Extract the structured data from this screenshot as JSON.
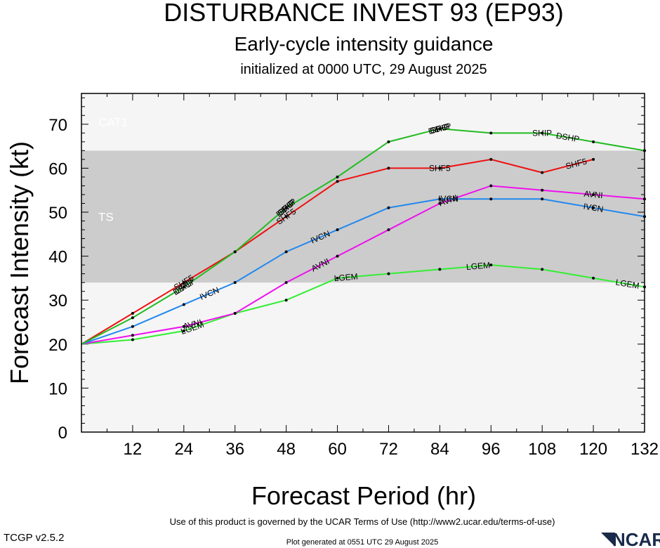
{
  "chart_data": {
    "type": "line",
    "title": "DISTURBANCE INVEST 93 (EP93)",
    "subtitle": "Early-cycle intensity guidance",
    "initialized": "initialized at 0000 UTC, 29 August 2025",
    "xlabel": "Forecast Period (hr)",
    "ylabel": "Forecast Intensity (kt)",
    "xlim": [
      0,
      132
    ],
    "ylim": [
      0,
      77
    ],
    "x_ticks": [
      12,
      24,
      36,
      48,
      60,
      72,
      84,
      96,
      108,
      120,
      132
    ],
    "y_ticks": [
      0,
      10,
      20,
      30,
      40,
      50,
      60,
      70
    ],
    "bands": [
      {
        "label": "TS",
        "from": 34,
        "to": 64,
        "color": "#cccccc"
      },
      {
        "label": "CAT1",
        "from": 64,
        "to": 83,
        "color": "#f5f5f5"
      }
    ],
    "series": [
      {
        "name": "DSHP",
        "color": "#22bb22",
        "x": [
          0,
          12,
          24,
          36,
          48,
          60,
          72,
          84,
          96,
          108,
          120,
          132
        ],
        "y": [
          20,
          26,
          33,
          41,
          51,
          58,
          66,
          69,
          68,
          68,
          66,
          64
        ],
        "labels": [
          {
            "text": "DSHP",
            "at": 24
          },
          {
            "text": "DSHP",
            "at": 48
          },
          {
            "text": "DSHP",
            "at": 84
          },
          {
            "text": "DSHP",
            "at": 114
          }
        ]
      },
      {
        "name": "OFCI",
        "color": "#22bb22",
        "labels": [
          {
            "text": "OFCI",
            "at": 24
          },
          {
            "text": "OFCI",
            "at": 48
          },
          {
            "text": "OFCI",
            "at": 84
          }
        ]
      },
      {
        "name": "SHIP",
        "color": "#22bb22",
        "labels": [
          {
            "text": "SHIP",
            "at": 48
          },
          {
            "text": "SHIP",
            "at": 84
          },
          {
            "text": "SHIP",
            "at": 108
          }
        ]
      },
      {
        "name": "SHF5",
        "color": "#ee1111",
        "x": [
          0,
          12,
          24,
          36,
          48,
          60,
          72,
          84,
          96,
          108,
          120
        ],
        "y": [
          20,
          27,
          34,
          41,
          49,
          57,
          60,
          60,
          62,
          59,
          62
        ],
        "labels": [
          {
            "text": "SHF5",
            "at": 24
          },
          {
            "text": "SHF5",
            "at": 48
          },
          {
            "text": "SHF5",
            "at": 84
          },
          {
            "text": "SHF5",
            "at": 116
          }
        ]
      },
      {
        "name": "IVCN",
        "color": "#2288ee",
        "x": [
          0,
          12,
          24,
          36,
          48,
          60,
          72,
          84,
          96,
          108,
          120,
          132
        ],
        "y": [
          20,
          24,
          29,
          34,
          41,
          46,
          51,
          53,
          53,
          53,
          51,
          49
        ],
        "labels": [
          {
            "text": "IVCN",
            "at": 30
          },
          {
            "text": "IVCN",
            "at": 56
          },
          {
            "text": "IVCN",
            "at": 86
          },
          {
            "text": "IVCN",
            "at": 120
          }
        ]
      },
      {
        "name": "AVNI",
        "color": "#ee11ee",
        "x": [
          0,
          12,
          24,
          36,
          48,
          60,
          72,
          84,
          96,
          108,
          120,
          132
        ],
        "y": [
          20,
          22,
          24,
          27,
          34,
          40,
          46,
          52,
          56,
          55,
          54,
          53
        ],
        "labels": [
          {
            "text": "AVNI",
            "at": 26
          },
          {
            "text": "AVNI",
            "at": 56
          },
          {
            "text": "AVNI",
            "at": 86
          },
          {
            "text": "AVNI",
            "at": 120
          }
        ]
      },
      {
        "name": "LGEM",
        "color": "#33ee33",
        "x": [
          0,
          12,
          24,
          36,
          48,
          60,
          72,
          84,
          96,
          108,
          120,
          132
        ],
        "y": [
          20,
          21,
          23,
          27,
          30,
          35,
          36,
          37,
          38,
          37,
          35,
          33
        ],
        "labels": [
          {
            "text": "LGEM",
            "at": 26
          },
          {
            "text": "LGEM",
            "at": 62
          },
          {
            "text": "LGEM",
            "at": 93
          },
          {
            "text": "LGEM",
            "at": 128
          }
        ]
      }
    ]
  },
  "footer": {
    "terms": "Use of this product is governed by the UCAR Terms of Use (http://www2.ucar.edu/terms-of-use)",
    "version": "TCGP v2.5.2",
    "generated": "Plot generated at 0551 UTC   29 August 2025",
    "logo_text": "NCAR"
  }
}
